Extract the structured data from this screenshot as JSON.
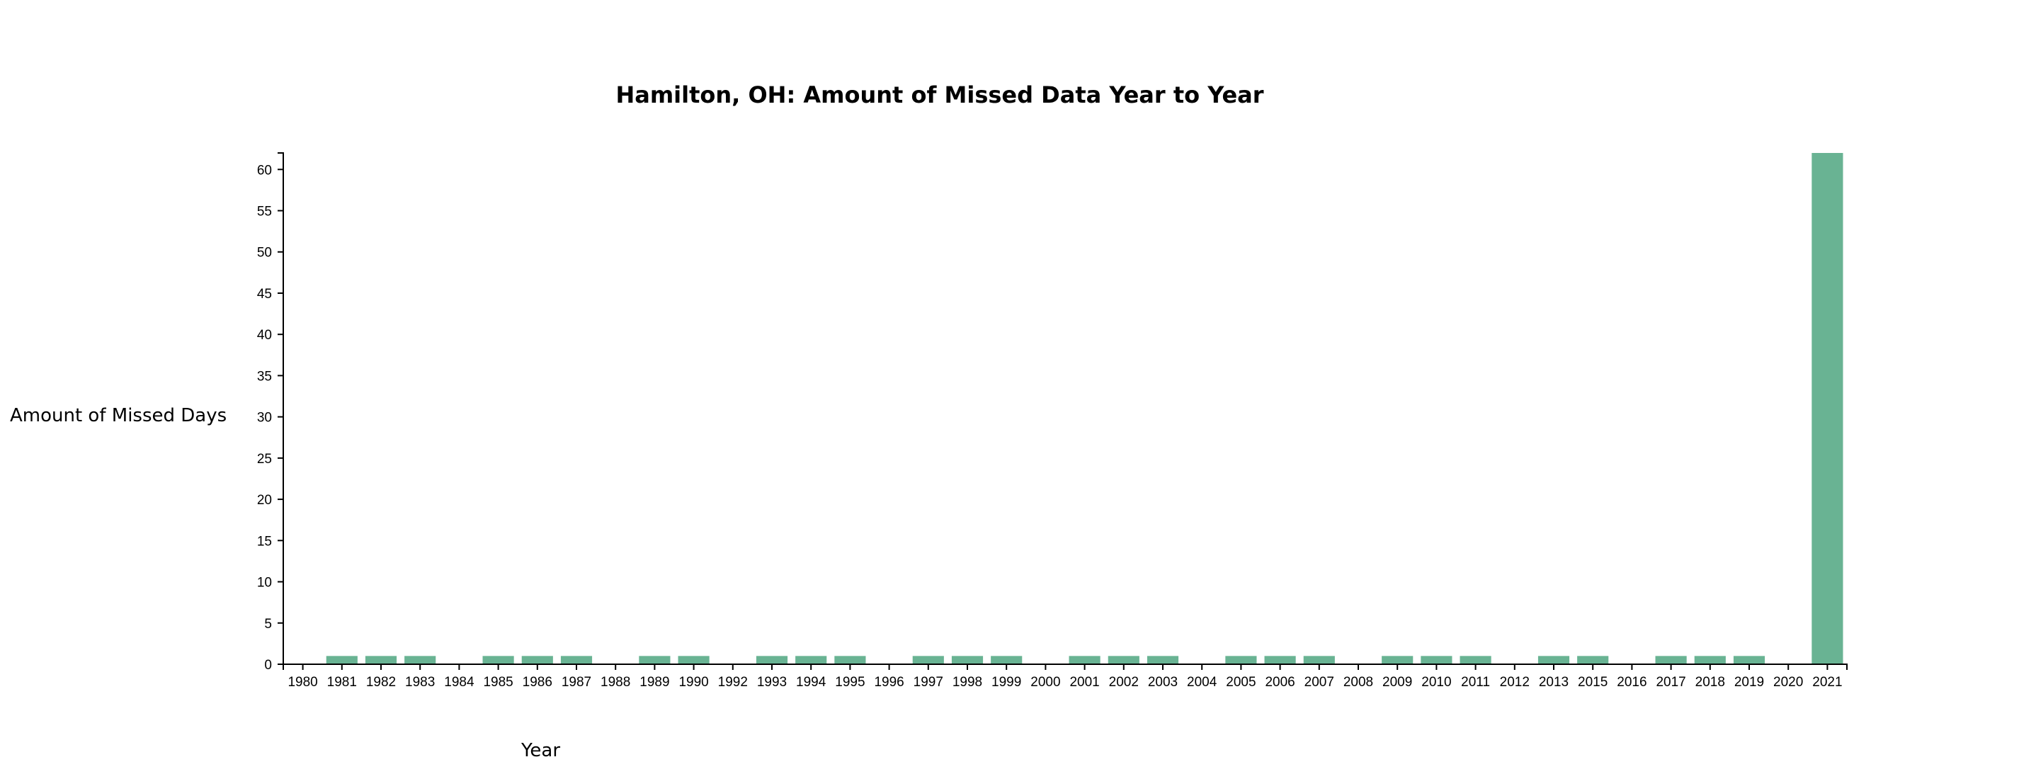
{
  "chart_data": {
    "type": "bar",
    "title": "Hamilton, OH: Amount of Missed Data Year to Year",
    "xlabel": "Year",
    "ylabel": "Amount of Missed Days",
    "categories": [
      "1980",
      "1981",
      "1982",
      "1983",
      "1984",
      "1985",
      "1986",
      "1987",
      "1988",
      "1989",
      "1990",
      "1992",
      "1993",
      "1994",
      "1995",
      "1996",
      "1997",
      "1998",
      "1999",
      "2000",
      "2001",
      "2002",
      "2003",
      "2004",
      "2005",
      "2006",
      "2007",
      "2008",
      "2009",
      "2010",
      "2011",
      "2012",
      "2013",
      "2015",
      "2016",
      "2017",
      "2018",
      "2019",
      "2020",
      "2021"
    ],
    "values": [
      0,
      1,
      1,
      1,
      0,
      1,
      1,
      1,
      0,
      1,
      1,
      0,
      1,
      1,
      1,
      0,
      1,
      1,
      1,
      0,
      1,
      1,
      1,
      0,
      1,
      1,
      1,
      0,
      1,
      1,
      1,
      0,
      1,
      1,
      0,
      1,
      1,
      1,
      0,
      62
    ],
    "yticks": [
      0,
      5,
      10,
      15,
      20,
      25,
      30,
      35,
      40,
      45,
      50,
      55,
      60
    ],
    "ylim": [
      0,
      62
    ],
    "bar_color": "#69b393",
    "grid": false,
    "legend": "none"
  }
}
